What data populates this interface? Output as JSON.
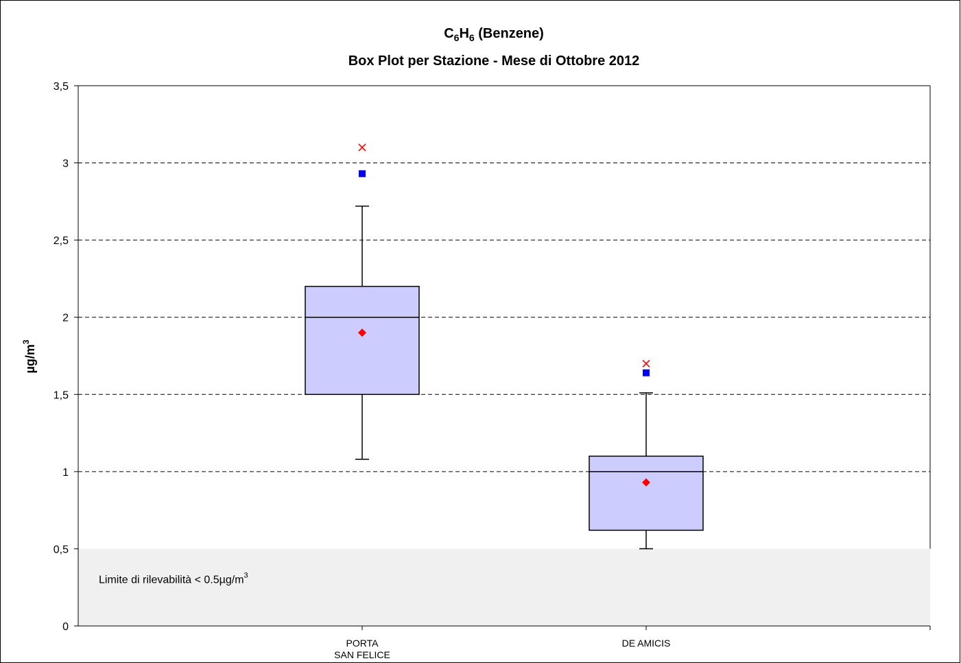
{
  "chart_data": {
    "type": "box",
    "title_line1": {
      "base_c": "C",
      "sub_c": "6",
      "base_h": "H",
      "sub_h": "6",
      "rest": " (Benzene)"
    },
    "title_line2": "Box Plot per Stazione - Mese di Ottobre 2012",
    "ylabel": {
      "base": "µg/m",
      "sup": "3"
    },
    "ylim": [
      0,
      3.5
    ],
    "yticks": [
      0,
      0.5,
      1,
      1.5,
      2,
      2.5,
      3,
      3.5
    ],
    "ytick_labels": [
      "0",
      "0,5",
      "1",
      "1,5",
      "2",
      "2,5",
      "3",
      "3,5"
    ],
    "grid": "horizontal dashed",
    "detection_limit": {
      "value": 0.5,
      "label_base": "Limite di rilevabilità < 0.5µg/m",
      "label_sup": "3",
      "color": "#f0f0f0"
    },
    "categories": [
      {
        "lines": [
          "PORTA",
          "SAN FELICE"
        ]
      },
      {
        "lines": [
          "DE AMICIS"
        ]
      }
    ],
    "boxes": [
      {
        "whisker_low": 1.08,
        "q1": 1.5,
        "median": 2.0,
        "q3": 2.2,
        "whisker_high": 2.72,
        "mean": 1.9,
        "square": 2.93,
        "cross": 3.1
      },
      {
        "whisker_low": 0.5,
        "q1": 0.62,
        "median": 1.0,
        "q3": 1.1,
        "whisker_high": 1.51,
        "mean": 0.93,
        "square": 1.64,
        "cross": 1.7
      }
    ],
    "colors": {
      "box_fill": "#ccccff",
      "mean_marker": "#ff0000",
      "square_marker": "#0000ff",
      "cross_marker": "#ff0000",
      "grid": "#000000"
    }
  }
}
